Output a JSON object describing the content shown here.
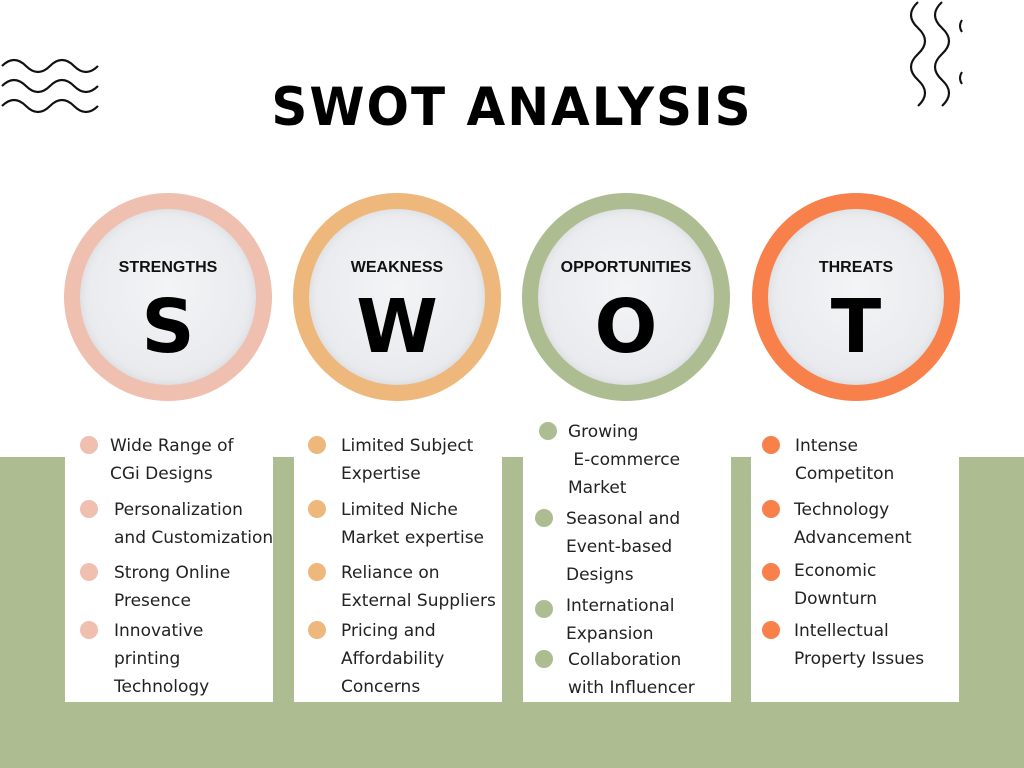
{
  "title": "SWOT ANALYSIS",
  "colors": {
    "strengths": "#efbfb0",
    "weakness": "#eeb77b",
    "opportunities": "#aebd91",
    "threats": "#f7804b",
    "band": "#aebd91"
  },
  "quadrants": [
    {
      "label": "STRENGTHS",
      "letter": "S",
      "items": [
        "Wide Range of\nCGi Designs",
        "Personalization\nand Customization",
        "Strong Online\nPresence",
        "Innovative\nprinting\nTechnology"
      ]
    },
    {
      "label": "WEAKNESS",
      "letter": "W",
      "items": [
        "Limited Subject\nExpertise",
        "Limited Niche\nMarket expertise",
        "Reliance on\nExternal Suppliers",
        "Pricing and\nAffordability\nConcerns"
      ]
    },
    {
      "label": "OPPORTUNITIES",
      "letter": "O",
      "items": [
        "Growing\n E-commerce\nMarket",
        "Seasonal and\nEvent-based\nDesigns",
        "International\nExpansion",
        "Collaboration\nwith Influencer"
      ]
    },
    {
      "label": "THREATS",
      "letter": "T",
      "items": [
        "Intense\nCompetiton",
        "Technology\nAdvancement",
        "Economic\nDownturn",
        "Intellectual\nProperty Issues"
      ]
    }
  ]
}
